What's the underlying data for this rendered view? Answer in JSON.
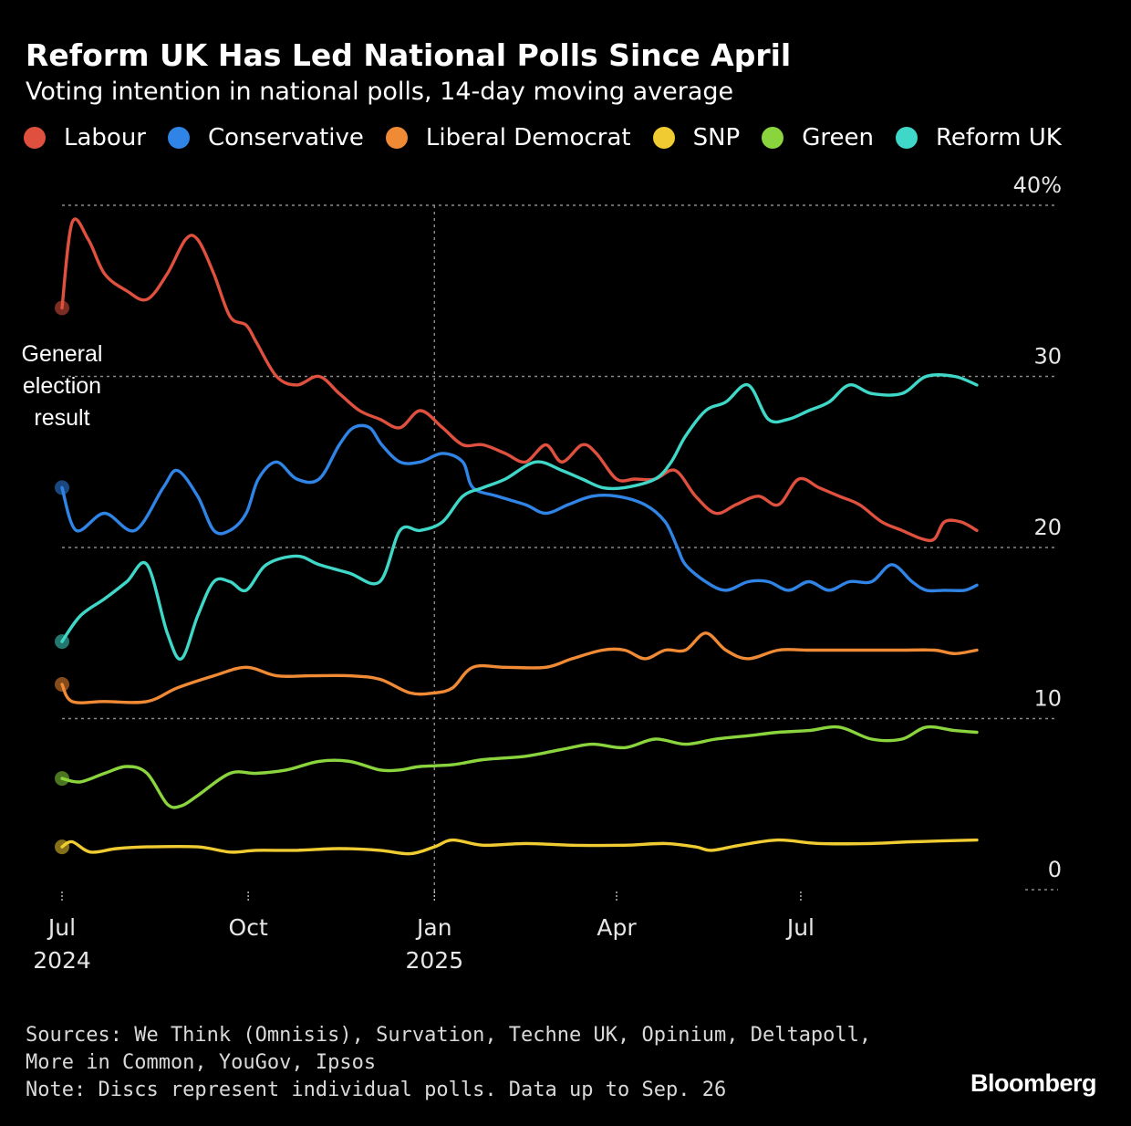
{
  "title": "Reform UK Has Led National Polls Since April",
  "subtitle": "Voting intention in national polls, 14-day moving average",
  "footer": {
    "sources_line1": "Sources: We Think (Omnisis), Survation, Techne UK, Opinium, Deltapoll,",
    "sources_line2": "More in Common, YouGov, Ipsos",
    "note": "Note: Discs represent individual polls. Data up to Sep. 26"
  },
  "brand": "Bloomberg",
  "annotation": {
    "lines": [
      "General",
      "election",
      "result"
    ]
  },
  "chart_data": {
    "type": "line",
    "x_axis": {
      "range": [
        "2024-07-01",
        "2025-09-26"
      ],
      "ticks": [
        {
          "date": "2024-07-01",
          "label": "Jul",
          "sublabel": "2024"
        },
        {
          "date": "2024-10-01",
          "label": "Oct",
          "sublabel": ""
        },
        {
          "date": "2025-01-01",
          "label": "Jan",
          "sublabel": "2025"
        },
        {
          "date": "2025-04-01",
          "label": "Apr",
          "sublabel": ""
        },
        {
          "date": "2025-07-01",
          "label": "Jul",
          "sublabel": ""
        }
      ],
      "marker_line": "2025-01-01"
    },
    "y_axis": {
      "range": [
        0,
        40
      ],
      "ticks": [
        {
          "value": 0,
          "label": "0"
        },
        {
          "value": 10,
          "label": "10"
        },
        {
          "value": 20,
          "label": "20"
        },
        {
          "value": 30,
          "label": "30"
        },
        {
          "value": 40,
          "label": "40%"
        }
      ],
      "gridlines": true
    },
    "legend_position": "top",
    "series": [
      {
        "name": "Labour",
        "color": "#e0503f",
        "points": [
          [
            "2024-07-01",
            34
          ],
          [
            "2024-07-06",
            39
          ],
          [
            "2024-07-14",
            38
          ],
          [
            "2024-07-22",
            36
          ],
          [
            "2024-08-02",
            35
          ],
          [
            "2024-08-12",
            34.5
          ],
          [
            "2024-08-22",
            36
          ],
          [
            "2024-08-31",
            38
          ],
          [
            "2024-09-06",
            38
          ],
          [
            "2024-09-14",
            36
          ],
          [
            "2024-09-22",
            33.5
          ],
          [
            "2024-09-30",
            33
          ],
          [
            "2024-10-05",
            32
          ],
          [
            "2024-10-15",
            30
          ],
          [
            "2024-10-25",
            29.5
          ],
          [
            "2024-11-05",
            30
          ],
          [
            "2024-11-15",
            29
          ],
          [
            "2024-11-25",
            28
          ],
          [
            "2024-12-05",
            27.5
          ],
          [
            "2024-12-15",
            27
          ],
          [
            "2024-12-25",
            28
          ],
          [
            "2025-01-05",
            27
          ],
          [
            "2025-01-15",
            26
          ],
          [
            "2025-01-25",
            26
          ],
          [
            "2025-02-05",
            25.5
          ],
          [
            "2025-02-15",
            25
          ],
          [
            "2025-02-25",
            26
          ],
          [
            "2025-03-05",
            25
          ],
          [
            "2025-03-15",
            26
          ],
          [
            "2025-03-22",
            25.5
          ],
          [
            "2025-04-01",
            24
          ],
          [
            "2025-04-10",
            24
          ],
          [
            "2025-04-20",
            24
          ],
          [
            "2025-04-30",
            24.5
          ],
          [
            "2025-05-10",
            23
          ],
          [
            "2025-05-20",
            22
          ],
          [
            "2025-05-30",
            22.5
          ],
          [
            "2025-06-10",
            23
          ],
          [
            "2025-06-20",
            22.5
          ],
          [
            "2025-06-30",
            24
          ],
          [
            "2025-07-10",
            23.5
          ],
          [
            "2025-07-20",
            23
          ],
          [
            "2025-07-30",
            22.5
          ],
          [
            "2025-08-10",
            21.5
          ],
          [
            "2025-08-20",
            21
          ],
          [
            "2025-08-30",
            20.5
          ],
          [
            "2025-09-05",
            20.5
          ],
          [
            "2025-09-10",
            21.5
          ],
          [
            "2025-09-18",
            21.5
          ],
          [
            "2025-09-26",
            21
          ]
        ]
      },
      {
        "name": "Conservative",
        "color": "#2f84e6",
        "points": [
          [
            "2024-07-01",
            23.5
          ],
          [
            "2024-07-08",
            21
          ],
          [
            "2024-07-22",
            22
          ],
          [
            "2024-08-06",
            21
          ],
          [
            "2024-08-20",
            23.5
          ],
          [
            "2024-08-27",
            24.5
          ],
          [
            "2024-09-06",
            23
          ],
          [
            "2024-09-14",
            21
          ],
          [
            "2024-09-22",
            21
          ],
          [
            "2024-09-30",
            22
          ],
          [
            "2024-10-06",
            24
          ],
          [
            "2024-10-15",
            25
          ],
          [
            "2024-10-25",
            24
          ],
          [
            "2024-11-05",
            24
          ],
          [
            "2024-11-15",
            26
          ],
          [
            "2024-11-22",
            27
          ],
          [
            "2024-11-30",
            27
          ],
          [
            "2024-12-06",
            26
          ],
          [
            "2024-12-15",
            25
          ],
          [
            "2024-12-25",
            25
          ],
          [
            "2025-01-05",
            25.5
          ],
          [
            "2025-01-15",
            25
          ],
          [
            "2025-01-20",
            23.5
          ],
          [
            "2025-02-01",
            23
          ],
          [
            "2025-02-15",
            22.5
          ],
          [
            "2025-02-25",
            22
          ],
          [
            "2025-03-08",
            22.5
          ],
          [
            "2025-03-20",
            23
          ],
          [
            "2025-04-01",
            23
          ],
          [
            "2025-04-15",
            22.5
          ],
          [
            "2025-04-25",
            21.5
          ],
          [
            "2025-05-01",
            20
          ],
          [
            "2025-05-05",
            19
          ],
          [
            "2025-05-15",
            18
          ],
          [
            "2025-05-25",
            17.5
          ],
          [
            "2025-06-05",
            18
          ],
          [
            "2025-06-15",
            18
          ],
          [
            "2025-06-25",
            17.5
          ],
          [
            "2025-07-05",
            18
          ],
          [
            "2025-07-15",
            17.5
          ],
          [
            "2025-07-25",
            18
          ],
          [
            "2025-08-05",
            18
          ],
          [
            "2025-08-15",
            19
          ],
          [
            "2025-08-25",
            18
          ],
          [
            "2025-09-01",
            17.5
          ],
          [
            "2025-09-10",
            17.5
          ],
          [
            "2025-09-20",
            17.5
          ],
          [
            "2025-09-26",
            17.8
          ]
        ]
      },
      {
        "name": "Liberal Democrat",
        "color": "#f08a35",
        "points": [
          [
            "2024-07-01",
            12
          ],
          [
            "2024-07-06",
            11
          ],
          [
            "2024-07-22",
            11
          ],
          [
            "2024-08-12",
            11
          ],
          [
            "2024-08-27",
            11.8
          ],
          [
            "2024-09-14",
            12.5
          ],
          [
            "2024-09-30",
            13
          ],
          [
            "2024-10-15",
            12.5
          ],
          [
            "2024-11-01",
            12.5
          ],
          [
            "2024-11-20",
            12.5
          ],
          [
            "2024-12-05",
            12.3
          ],
          [
            "2024-12-20",
            11.5
          ],
          [
            "2025-01-01",
            11.5
          ],
          [
            "2025-01-10",
            11.8
          ],
          [
            "2025-01-20",
            13
          ],
          [
            "2025-02-05",
            13
          ],
          [
            "2025-02-25",
            13
          ],
          [
            "2025-03-10",
            13.5
          ],
          [
            "2025-03-25",
            14
          ],
          [
            "2025-04-05",
            14
          ],
          [
            "2025-04-15",
            13.5
          ],
          [
            "2025-04-25",
            14
          ],
          [
            "2025-05-05",
            14
          ],
          [
            "2025-05-15",
            15
          ],
          [
            "2025-05-25",
            14
          ],
          [
            "2025-06-05",
            13.5
          ],
          [
            "2025-06-20",
            14
          ],
          [
            "2025-07-05",
            14
          ],
          [
            "2025-07-20",
            14
          ],
          [
            "2025-08-05",
            14
          ],
          [
            "2025-08-20",
            14
          ],
          [
            "2025-09-05",
            14
          ],
          [
            "2025-09-15",
            13.8
          ],
          [
            "2025-09-26",
            14
          ]
        ]
      },
      {
        "name": "SNP",
        "color": "#f0cc32",
        "points": [
          [
            "2024-07-01",
            2.5
          ],
          [
            "2024-07-06",
            2.8
          ],
          [
            "2024-07-15",
            2.2
          ],
          [
            "2024-07-28",
            2.4
          ],
          [
            "2024-08-12",
            2.5
          ],
          [
            "2024-09-06",
            2.5
          ],
          [
            "2024-09-22",
            2.2
          ],
          [
            "2024-10-05",
            2.3
          ],
          [
            "2024-10-25",
            2.3
          ],
          [
            "2024-11-15",
            2.4
          ],
          [
            "2024-12-05",
            2.3
          ],
          [
            "2024-12-20",
            2.1
          ],
          [
            "2025-01-01",
            2.5
          ],
          [
            "2025-01-10",
            2.9
          ],
          [
            "2025-01-25",
            2.6
          ],
          [
            "2025-02-15",
            2.7
          ],
          [
            "2025-03-10",
            2.6
          ],
          [
            "2025-04-05",
            2.6
          ],
          [
            "2025-04-25",
            2.7
          ],
          [
            "2025-05-10",
            2.5
          ],
          [
            "2025-05-18",
            2.3
          ],
          [
            "2025-06-01",
            2.6
          ],
          [
            "2025-06-20",
            2.9
          ],
          [
            "2025-07-10",
            2.7
          ],
          [
            "2025-08-05",
            2.7
          ],
          [
            "2025-08-25",
            2.8
          ],
          [
            "2025-09-26",
            2.9
          ]
        ]
      },
      {
        "name": "Green",
        "color": "#8ad53d",
        "points": [
          [
            "2024-07-01",
            6.5
          ],
          [
            "2024-07-10",
            6.3
          ],
          [
            "2024-07-22",
            6.8
          ],
          [
            "2024-08-02",
            7.2
          ],
          [
            "2024-08-12",
            6.8
          ],
          [
            "2024-08-22",
            5
          ],
          [
            "2024-08-29",
            4.9
          ],
          [
            "2024-09-06",
            5.5
          ],
          [
            "2024-09-22",
            6.8
          ],
          [
            "2024-10-05",
            6.8
          ],
          [
            "2024-10-20",
            7.0
          ],
          [
            "2024-11-05",
            7.5
          ],
          [
            "2024-11-20",
            7.5
          ],
          [
            "2024-12-05",
            7.0
          ],
          [
            "2024-12-15",
            7.0
          ],
          [
            "2024-12-25",
            7.2
          ],
          [
            "2025-01-10",
            7.3
          ],
          [
            "2025-01-25",
            7.6
          ],
          [
            "2025-02-15",
            7.8
          ],
          [
            "2025-03-05",
            8.2
          ],
          [
            "2025-03-20",
            8.5
          ],
          [
            "2025-04-05",
            8.3
          ],
          [
            "2025-04-20",
            8.8
          ],
          [
            "2025-05-05",
            8.5
          ],
          [
            "2025-05-20",
            8.8
          ],
          [
            "2025-06-05",
            9.0
          ],
          [
            "2025-06-20",
            9.2
          ],
          [
            "2025-07-05",
            9.3
          ],
          [
            "2025-07-20",
            9.5
          ],
          [
            "2025-08-05",
            8.8
          ],
          [
            "2025-08-20",
            8.8
          ],
          [
            "2025-09-01",
            9.5
          ],
          [
            "2025-09-15",
            9.3
          ],
          [
            "2025-09-26",
            9.2
          ]
        ]
      },
      {
        "name": "Reform UK",
        "color": "#3fd8c8",
        "points": [
          [
            "2024-07-01",
            14.5
          ],
          [
            "2024-07-10",
            16
          ],
          [
            "2024-07-22",
            17
          ],
          [
            "2024-08-02",
            18
          ],
          [
            "2024-08-12",
            19
          ],
          [
            "2024-08-22",
            15
          ],
          [
            "2024-08-29",
            13.5
          ],
          [
            "2024-09-06",
            16
          ],
          [
            "2024-09-14",
            18
          ],
          [
            "2024-09-22",
            18
          ],
          [
            "2024-09-30",
            17.5
          ],
          [
            "2024-10-10",
            19
          ],
          [
            "2024-10-25",
            19.5
          ],
          [
            "2024-11-05",
            19
          ],
          [
            "2024-11-20",
            18.5
          ],
          [
            "2024-12-05",
            18
          ],
          [
            "2024-12-15",
            21
          ],
          [
            "2024-12-25",
            21
          ],
          [
            "2025-01-05",
            21.5
          ],
          [
            "2025-01-15",
            23
          ],
          [
            "2025-01-25",
            23.5
          ],
          [
            "2025-02-05",
            24
          ],
          [
            "2025-02-20",
            25
          ],
          [
            "2025-03-05",
            24.5
          ],
          [
            "2025-03-15",
            24
          ],
          [
            "2025-03-25",
            23.5
          ],
          [
            "2025-04-05",
            23.5
          ],
          [
            "2025-04-20",
            24
          ],
          [
            "2025-04-28",
            25
          ],
          [
            "2025-05-05",
            26.5
          ],
          [
            "2025-05-15",
            28
          ],
          [
            "2025-05-25",
            28.5
          ],
          [
            "2025-06-05",
            29.5
          ],
          [
            "2025-06-15",
            27.5
          ],
          [
            "2025-06-25",
            27.5
          ],
          [
            "2025-07-05",
            28
          ],
          [
            "2025-07-15",
            28.5
          ],
          [
            "2025-07-25",
            29.5
          ],
          [
            "2025-08-05",
            29
          ],
          [
            "2025-08-20",
            29
          ],
          [
            "2025-09-01",
            30
          ],
          [
            "2025-09-15",
            30
          ],
          [
            "2025-09-26",
            29.5
          ]
        ]
      }
    ]
  }
}
